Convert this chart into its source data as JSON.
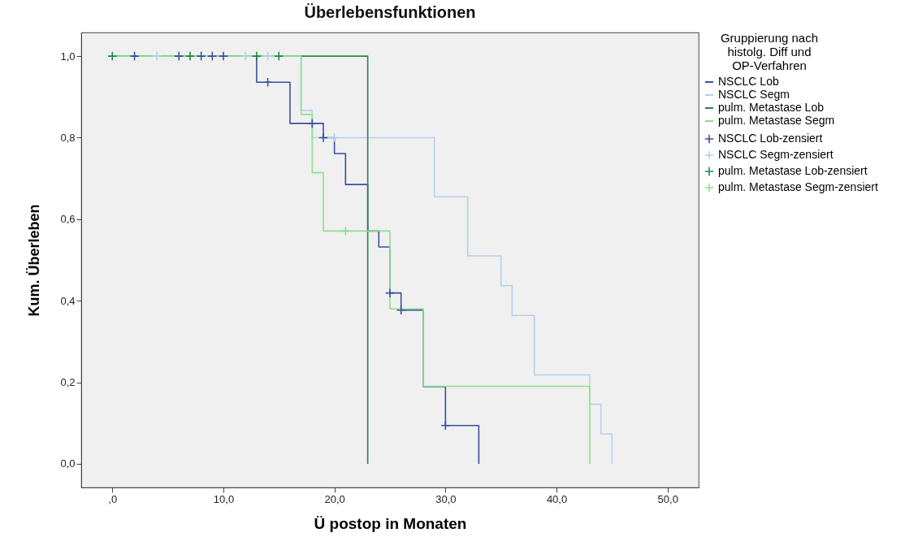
{
  "chart_data": {
    "type": "step",
    "title": "Überlebensfunktionen",
    "xlabel": "Ü postop in Monaten",
    "ylabel": "Kum. Überleben",
    "legend_title": "Gruppierung nach histolg. Diff und OP-Verfahren",
    "legend": "right",
    "grid": false,
    "xlim": [
      -2.8,
      52.8
    ],
    "ylim": [
      -0.058,
      1.058
    ],
    "xticks": [
      {
        "value": 0,
        "label": ",0"
      },
      {
        "value": 10,
        "label": "10,0"
      },
      {
        "value": 20,
        "label": "20,0"
      },
      {
        "value": 30,
        "label": "30,0"
      },
      {
        "value": 40,
        "label": "40,0"
      },
      {
        "value": 50,
        "label": "50,0"
      }
    ],
    "yticks": [
      {
        "value": 0,
        "label": "0,0"
      },
      {
        "value": 0.2,
        "label": "0,2"
      },
      {
        "value": 0.4,
        "label": "0,4"
      },
      {
        "value": 0.6,
        "label": "0,6"
      },
      {
        "value": 0.8,
        "label": "0,8"
      },
      {
        "value": 1,
        "label": "1,0"
      }
    ],
    "series": [
      {
        "name": "NSCLC Lob",
        "color": "#3b4fa0",
        "x": [
          0,
          13,
          16,
          19,
          20,
          21,
          23,
          24,
          25,
          26,
          28,
          30,
          33
        ],
        "values": [
          1,
          0.936,
          0.835,
          0.8,
          0.761,
          0.685,
          0.571,
          0.532,
          0.419,
          0.377,
          0.189,
          0.094,
          0
        ]
      },
      {
        "name": "NSCLC Segm",
        "color": "#b5d0ee",
        "x": [
          0,
          17,
          18,
          29,
          32,
          35,
          36,
          38,
          43,
          44,
          45
        ],
        "values": [
          1,
          0.867,
          0.8,
          0.655,
          0.51,
          0.437,
          0.364,
          0.218,
          0.146,
          0.073,
          0
        ]
      },
      {
        "name": "pulm. Metastase Lob",
        "color": "#1f8a4a",
        "x": [
          0,
          23
        ],
        "values": [
          1,
          0
        ]
      },
      {
        "name": "pulm. Metastase Segm",
        "color": "#8ee08e",
        "x": [
          0,
          17,
          18,
          19,
          25,
          28,
          43
        ],
        "values": [
          1,
          0.857,
          0.714,
          0.571,
          0.38,
          0.19,
          0
        ]
      },
      {
        "name": "NSCLC Lob-zensiert",
        "type": "scatter",
        "marker": "cross",
        "color": "#3b4fa0",
        "x": [
          2,
          6,
          8,
          9,
          10,
          14,
          18,
          19,
          25,
          26,
          30
        ],
        "values": [
          1,
          1,
          1,
          1,
          1,
          0.936,
          0.835,
          0.8,
          0.419,
          0.377,
          0.094
        ]
      },
      {
        "name": "NSCLC Segm-zensiert",
        "type": "scatter",
        "marker": "cross",
        "color": "#b5d0ee",
        "x": [
          4,
          12,
          14,
          20
        ],
        "values": [
          1,
          1,
          1,
          0.8
        ]
      },
      {
        "name": "pulm. Metastase Lob-zensiert",
        "type": "scatter",
        "marker": "cross",
        "color": "#1f8a4a",
        "x": [
          0,
          7,
          13,
          15
        ],
        "values": [
          1,
          1,
          1,
          1
        ]
      },
      {
        "name": "pulm. Metastase Segm-zensiert",
        "type": "scatter",
        "marker": "cross",
        "color": "#8ee08e",
        "x": [
          21
        ],
        "values": [
          0.571
        ]
      }
    ]
  }
}
